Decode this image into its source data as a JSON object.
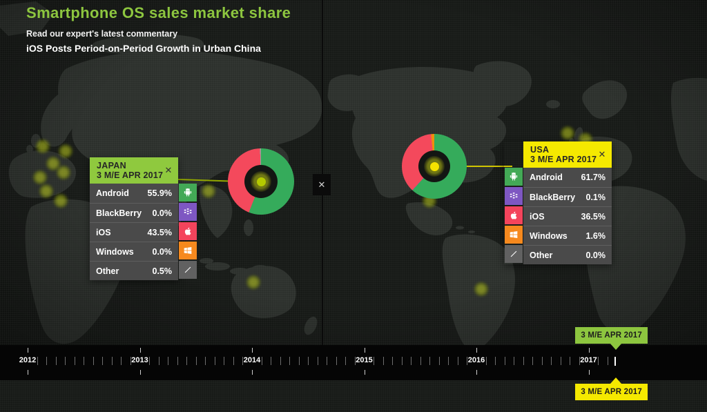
{
  "header": {
    "title": "Smartphone OS sales market share",
    "subtitle": "Read our expert's latest commentary",
    "headline": "iOS Posts Period-on-Period Growth in Urban China"
  },
  "colors": {
    "title_green": "#8dc63f",
    "japan_header_bg": "#8fc93e",
    "usa_header_bg": "#f5e900",
    "row_bg": "#4a4a4a",
    "android_icon": "#43a956",
    "blackberry_icon": "#7e57c2",
    "ios_icon": "#f4445c",
    "windows_icon": "#f6891e",
    "other_icon": "#616161",
    "donut_android": "#35ab5b",
    "donut_blackberry": "#7e57c2",
    "donut_ios": "#f4495c",
    "donut_windows": "#ef8e0e",
    "donut_other": "#9e9e9e",
    "japan_core_dot": "#b4c900",
    "usa_core_dot": "#f5e300",
    "japan_connector": "#93a800",
    "usa_connector": "#cfc400",
    "badge_green": "#8dc63f",
    "badge_yellow": "#f5e900"
  },
  "japan_panel": {
    "country": "JAPAN",
    "period": "3 M/E APR 2017",
    "close_label": "✕",
    "rows": [
      {
        "label": "Android",
        "value": "55.9%",
        "icon": "android-icon"
      },
      {
        "label": "BlackBerry",
        "value": "0.0%",
        "icon": "blackberry-icon"
      },
      {
        "label": "iOS",
        "value": "43.5%",
        "icon": "apple-icon"
      },
      {
        "label": "Windows",
        "value": "0.0%",
        "icon": "windows-icon"
      },
      {
        "label": "Other",
        "value": "0.5%",
        "icon": "other-slash-icon"
      }
    ]
  },
  "usa_panel": {
    "country": "USA",
    "period": "3 M/E APR 2017",
    "close_label": "✕",
    "rows": [
      {
        "label": "Android",
        "value": "61.7%",
        "icon": "android-icon"
      },
      {
        "label": "BlackBerry",
        "value": "0.1%",
        "icon": "blackberry-icon"
      },
      {
        "label": "iOS",
        "value": "36.5%",
        "icon": "apple-icon"
      },
      {
        "label": "Windows",
        "value": "1.6%",
        "icon": "windows-icon"
      },
      {
        "label": "Other",
        "value": "0.0%",
        "icon": "other-slash-icon"
      }
    ]
  },
  "map_close_label": "✕",
  "timeline": {
    "years": [
      "2012",
      "2013",
      "2014",
      "2015",
      "2016",
      "2017"
    ],
    "marker_top_label": "3 M/E APR 2017",
    "marker_bottom_label": "3 M/E APR 2017"
  },
  "chart_data": [
    {
      "type": "pie",
      "title": "JAPAN 3 M/E APR 2017",
      "labels": [
        "Android",
        "BlackBerry",
        "iOS",
        "Windows",
        "Other"
      ],
      "values": [
        55.9,
        0.0,
        43.5,
        0.0,
        0.5
      ],
      "colors": [
        "#35ab5b",
        "#7e57c2",
        "#f4495c",
        "#ef8e0e",
        "#9e9e9e"
      ],
      "donut": true,
      "start_angle_deg": 0,
      "direction": "clockwise",
      "legend_position": "table-left-of-chart"
    },
    {
      "type": "pie",
      "title": "USA 3 M/E APR 2017",
      "labels": [
        "Android",
        "BlackBerry",
        "iOS",
        "Windows",
        "Other"
      ],
      "values": [
        61.7,
        0.1,
        36.5,
        1.6,
        0.0
      ],
      "colors": [
        "#35ab5b",
        "#7e57c2",
        "#f4495c",
        "#ef8e0e",
        "#9e9e9e"
      ],
      "donut": true,
      "start_angle_deg": 0,
      "direction": "clockwise",
      "legend_position": "table-right-of-chart"
    }
  ]
}
